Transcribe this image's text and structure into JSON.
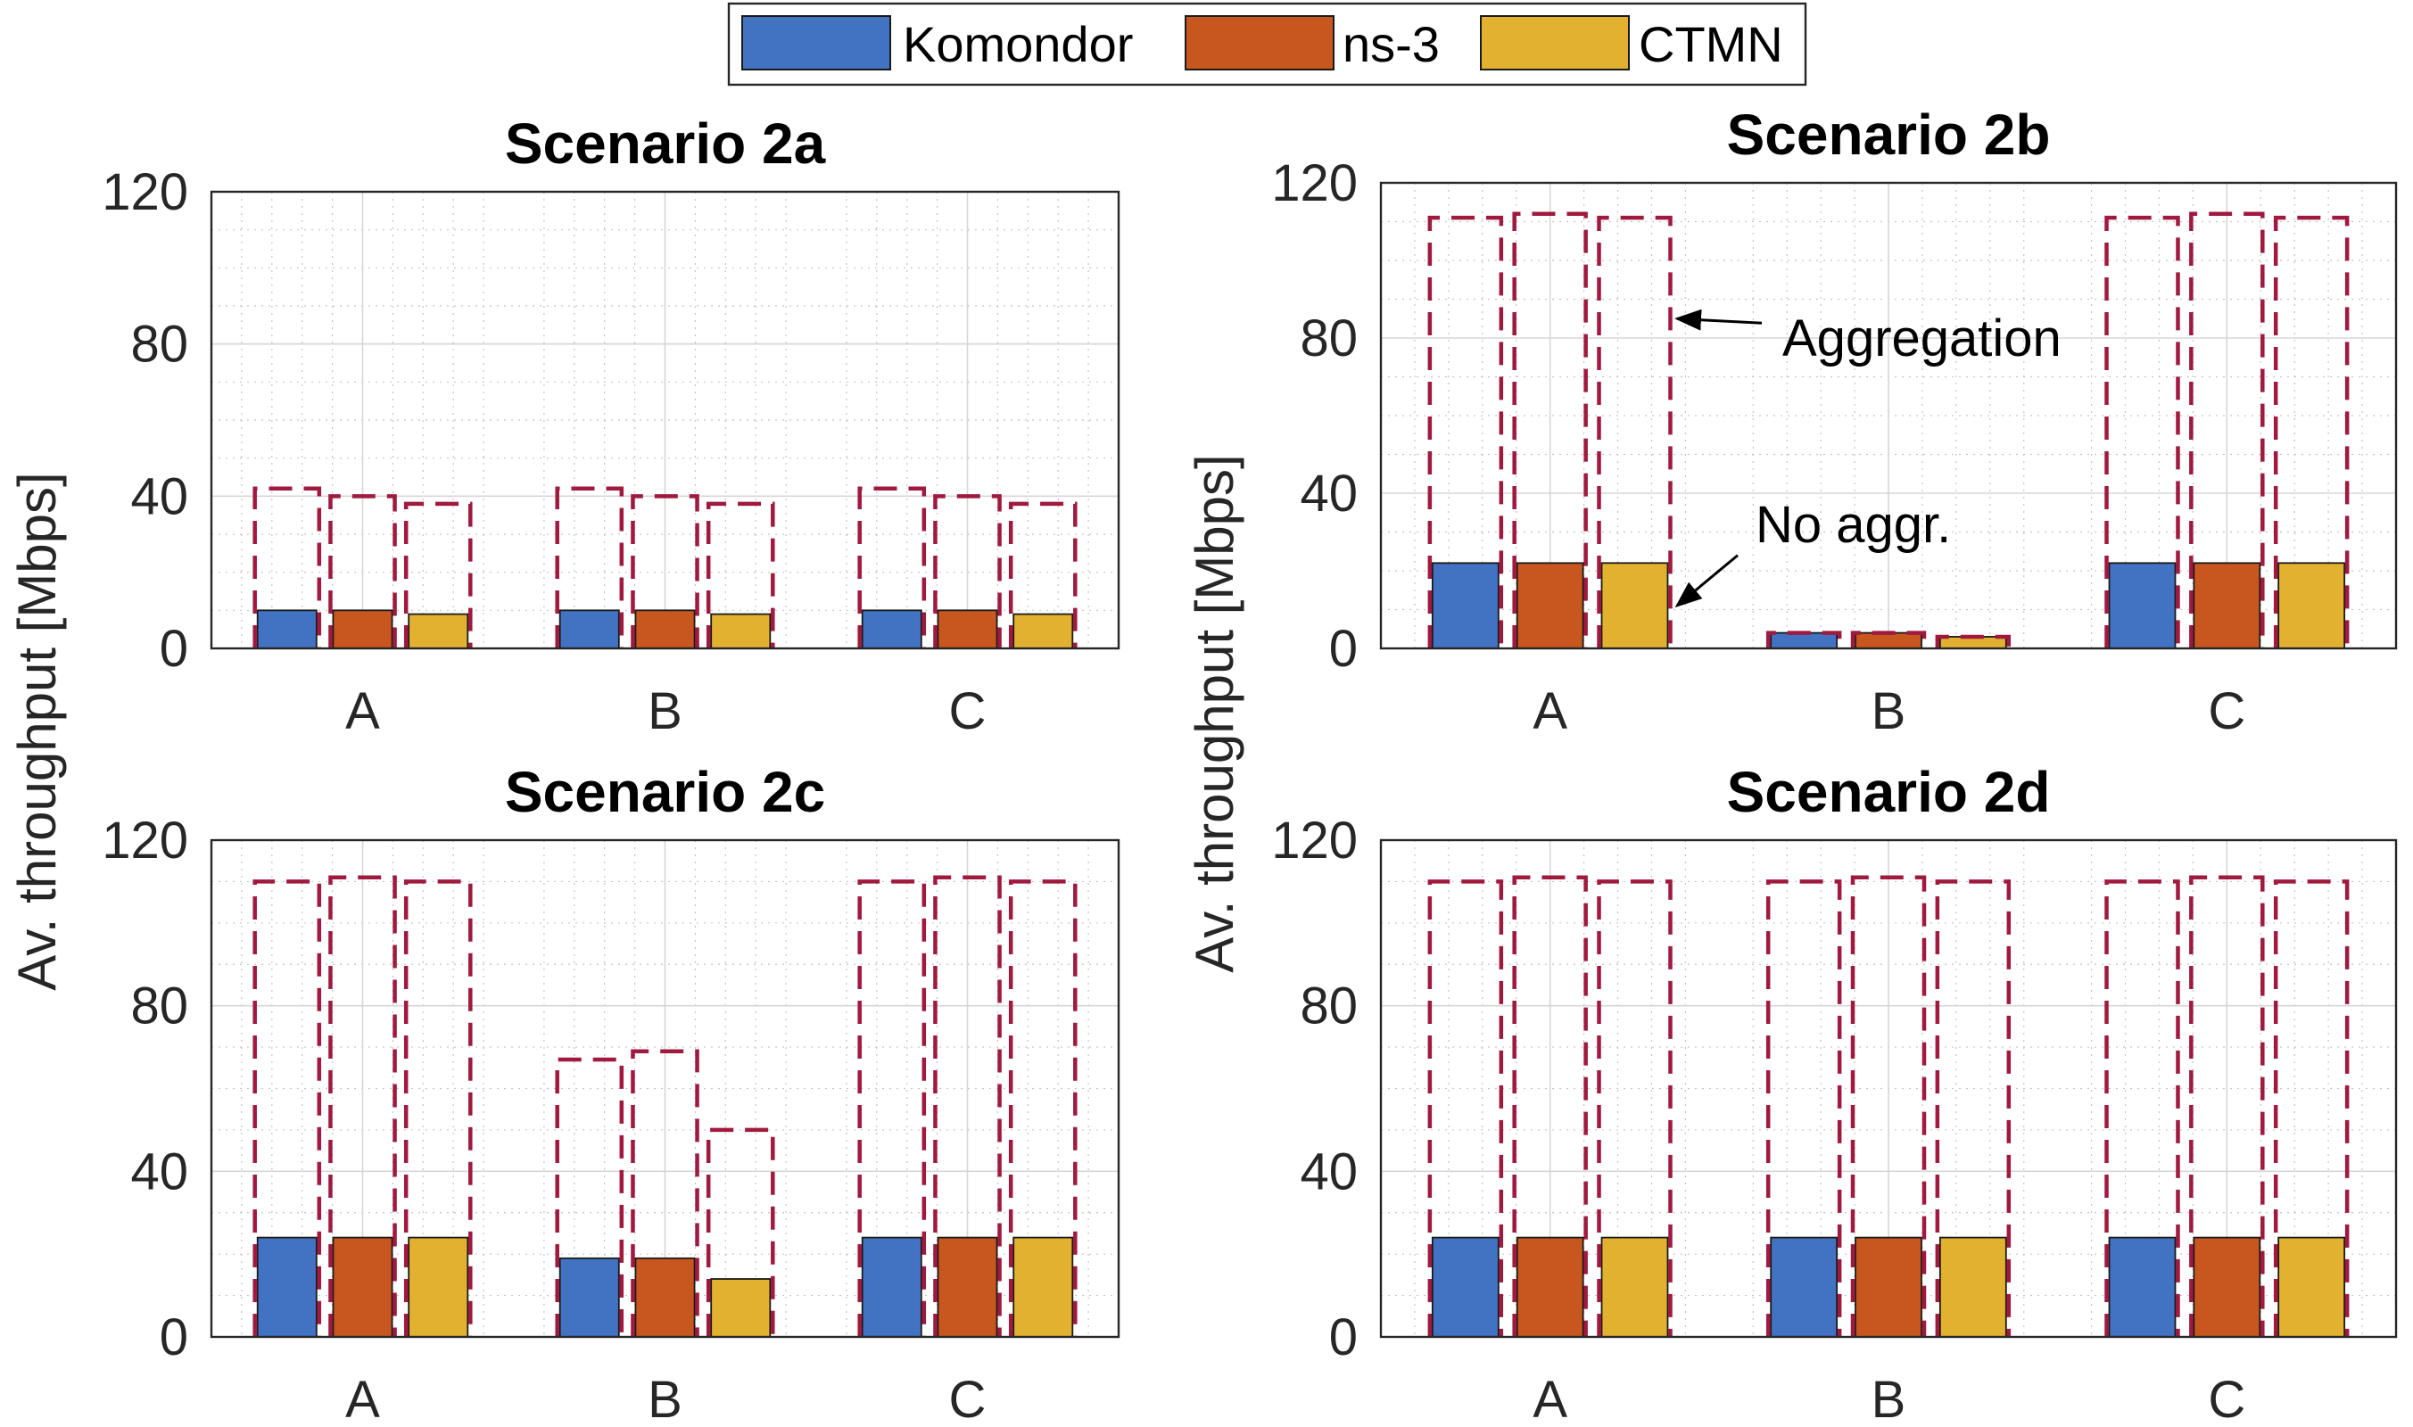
{
  "chart_data": {
    "type": "bar",
    "legend": {
      "placement": "top-center",
      "entries": [
        {
          "name": "Komondor",
          "color": "#4272c2"
        },
        {
          "name": "ns-3",
          "color": "#c8561f"
        },
        {
          "name": "CTMN",
          "color": "#e2b12f"
        }
      ]
    },
    "ylabel": "Av. throughput [Mbps]",
    "ylim": [
      0,
      120
    ],
    "yticks": [
      0,
      40,
      80,
      120
    ],
    "categories": [
      "A",
      "B",
      "C"
    ],
    "aggregation_style": {
      "color": "#a0193f",
      "line": "dashed"
    },
    "annotations": [
      {
        "text": "Aggregation",
        "panel": 1
      },
      {
        "text": "No aggr.",
        "panel": 1
      }
    ],
    "panels": [
      {
        "title": "Scenario 2a",
        "series": [
          {
            "name": "Komondor",
            "no_aggregation": [
              10,
              10,
              10
            ],
            "aggregation": [
              42,
              42,
              42
            ]
          },
          {
            "name": "ns-3",
            "no_aggregation": [
              10,
              10,
              10
            ],
            "aggregation": [
              40,
              40,
              40
            ]
          },
          {
            "name": "CTMN",
            "no_aggregation": [
              9,
              9,
              9
            ],
            "aggregation": [
              38,
              38,
              38
            ]
          }
        ]
      },
      {
        "title": "Scenario 2b",
        "series": [
          {
            "name": "Komondor",
            "no_aggregation": [
              22,
              4,
              22
            ],
            "aggregation": [
              111,
              4,
              111
            ]
          },
          {
            "name": "ns-3",
            "no_aggregation": [
              22,
              4,
              22
            ],
            "aggregation": [
              112,
              4,
              112
            ]
          },
          {
            "name": "CTMN",
            "no_aggregation": [
              22,
              3,
              22
            ],
            "aggregation": [
              111,
              3,
              111
            ]
          }
        ]
      },
      {
        "title": "Scenario 2c",
        "series": [
          {
            "name": "Komondor",
            "no_aggregation": [
              24,
              19,
              24
            ],
            "aggregation": [
              110,
              67,
              110
            ]
          },
          {
            "name": "ns-3",
            "no_aggregation": [
              24,
              19,
              24
            ],
            "aggregation": [
              111,
              69,
              111
            ]
          },
          {
            "name": "CTMN",
            "no_aggregation": [
              24,
              14,
              24
            ],
            "aggregation": [
              110,
              50,
              110
            ]
          }
        ]
      },
      {
        "title": "Scenario 2d",
        "series": [
          {
            "name": "Komondor",
            "no_aggregation": [
              24,
              24,
              24
            ],
            "aggregation": [
              110,
              110,
              110
            ]
          },
          {
            "name": "ns-3",
            "no_aggregation": [
              24,
              24,
              24
            ],
            "aggregation": [
              111,
              111,
              111
            ]
          },
          {
            "name": "CTMN",
            "no_aggregation": [
              24,
              24,
              24
            ],
            "aggregation": [
              110,
              110,
              110
            ]
          }
        ]
      }
    ]
  }
}
